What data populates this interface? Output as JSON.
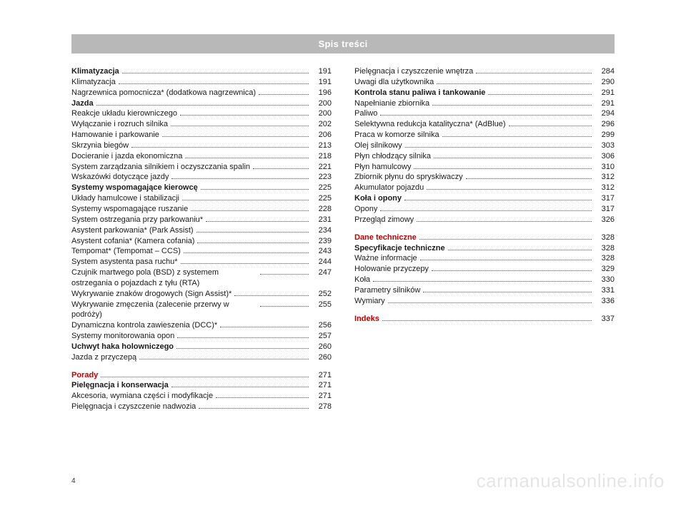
{
  "header": "Spis treści",
  "page_number": "4",
  "watermark": "carmanualsonline.info",
  "columns": [
    [
      {
        "label": "Klimatyzacja",
        "page": "191",
        "style": "bold"
      },
      {
        "label": "Klimatyzacja",
        "page": "191"
      },
      {
        "label": "Nagrzewnica pomocnicza* (dodatkowa nagrzewnica)",
        "page": "196"
      },
      {
        "label": "Jazda",
        "page": "200",
        "style": "bold"
      },
      {
        "label": "Reakcje układu kierowniczego",
        "page": "200"
      },
      {
        "label": "Wyłączanie i rozruch silnika",
        "page": "202"
      },
      {
        "label": "Hamowanie i parkowanie",
        "page": "206"
      },
      {
        "label": "Skrzynia biegów",
        "page": "213"
      },
      {
        "label": "Docieranie i jazda ekonomiczna",
        "page": "218"
      },
      {
        "label": "System zarządzania silnikiem i oczyszczania spalin",
        "page": "221"
      },
      {
        "label": "Wskazówki dotyczące jazdy",
        "page": "223"
      },
      {
        "label": "Systemy wspomagające kierowcę",
        "page": "225",
        "style": "bold"
      },
      {
        "label": "Układy hamulcowe i stabilizacji",
        "page": "225"
      },
      {
        "label": "Systemy wspomagające ruszanie",
        "page": "228"
      },
      {
        "label": "System ostrzegania przy parkowaniu*",
        "page": "231"
      },
      {
        "label": "Asystent parkowania* (Park Assist)",
        "page": "234"
      },
      {
        "label": "Asystent cofania* (Kamera cofania)",
        "page": "239"
      },
      {
        "label": "Tempomat* (Tempomat – CCS)",
        "page": "243"
      },
      {
        "label": "System asystenta pasa ruchu*",
        "page": "244"
      },
      {
        "label": "Czujnik martwego pola (BSD) z systemem ostrzegania o pojazdach z tyłu (RTA)",
        "page": "247"
      },
      {
        "label": "Wykrywanie znaków drogowych (Sign Assist)*",
        "page": "252"
      },
      {
        "label": "Wykrywanie zmęczenia (zalecenie przerwy w podróży)",
        "page": "255"
      },
      {
        "label": "Dynamiczna kontrola zawieszenia (DCC)*",
        "page": "256"
      },
      {
        "label": "Systemy monitorowania opon",
        "page": "257"
      },
      {
        "label": "Uchwyt haka holowniczego",
        "page": "260",
        "style": "bold"
      },
      {
        "label": "Jazda z przyczepą",
        "page": "260"
      },
      {
        "label": "Porady",
        "page": "271",
        "style": "red",
        "spacer": true
      },
      {
        "label": "Pielęgnacja i konserwacja",
        "page": "271",
        "style": "bold"
      },
      {
        "label": "Akcesoria, wymiana części i modyfikacje",
        "page": "271"
      },
      {
        "label": "Pielęgnacja i czyszczenie nadwozia",
        "page": "278"
      }
    ],
    [
      {
        "label": "Pielęgnacja i czyszczenie wnętrza",
        "page": "284"
      },
      {
        "label": "Uwagi dla użytkownika",
        "page": "290"
      },
      {
        "label": "Kontrola stanu paliwa i tankowanie",
        "page": "291",
        "style": "bold"
      },
      {
        "label": "Napełnianie zbiornika",
        "page": "291"
      },
      {
        "label": "Paliwo",
        "page": "294"
      },
      {
        "label": "Selektywna redukcja katalityczna* (AdBlue)",
        "page": "296"
      },
      {
        "label": "Praca w komorze silnika",
        "page": "299"
      },
      {
        "label": "Olej silnikowy",
        "page": "303"
      },
      {
        "label": "Płyn chłodzący silnika",
        "page": "306"
      },
      {
        "label": "Płyn hamulcowy",
        "page": "310"
      },
      {
        "label": "Zbiornik płynu do spryskiwaczy",
        "page": "312"
      },
      {
        "label": "Akumulator pojazdu",
        "page": "312"
      },
      {
        "label": "Koła i opony",
        "page": "317",
        "style": "bold"
      },
      {
        "label": "Opony",
        "page": "317"
      },
      {
        "label": "Przegląd zimowy",
        "page": "326"
      },
      {
        "label": "Dane techniczne",
        "page": "328",
        "style": "red",
        "spacer": true
      },
      {
        "label": "Specyfikacje techniczne",
        "page": "328",
        "style": "bold"
      },
      {
        "label": "Ważne informacje",
        "page": "328"
      },
      {
        "label": "Holowanie przyczepy",
        "page": "329"
      },
      {
        "label": "Koła",
        "page": "330"
      },
      {
        "label": "Parametry silników",
        "page": "331"
      },
      {
        "label": "Wymiary",
        "page": "336"
      },
      {
        "label": "Indeks",
        "page": "337",
        "style": "red",
        "spacer": true
      }
    ]
  ]
}
